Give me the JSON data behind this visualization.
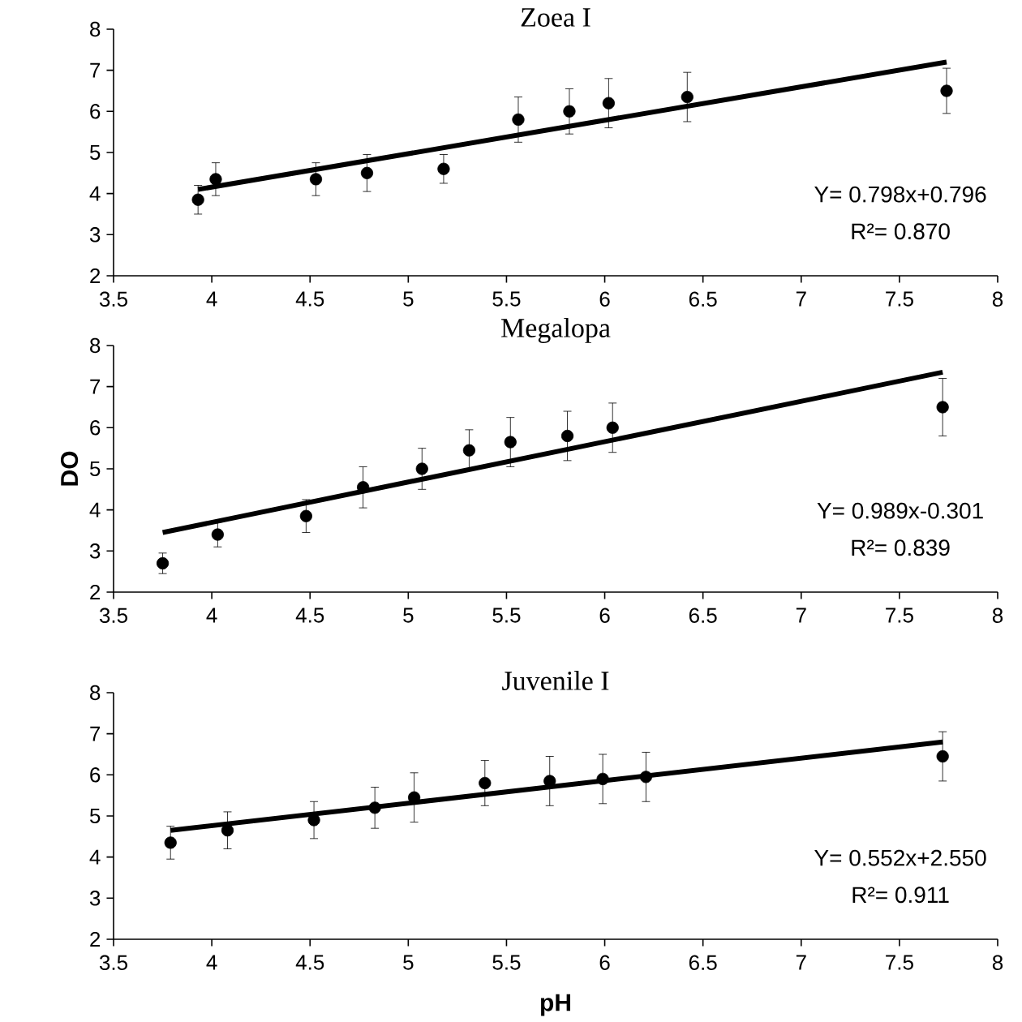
{
  "chart_data": [
    {
      "type": "scatter",
      "title": "Zoea I",
      "xlim": [
        3.5,
        8
      ],
      "ylim": [
        2,
        8
      ],
      "xticks": [
        3.5,
        4,
        4.5,
        5,
        5.5,
        6,
        6.5,
        7,
        7.5,
        8
      ],
      "yticks": [
        2,
        3,
        4,
        5,
        6,
        7,
        8
      ],
      "grid": false,
      "annotations": [
        "Y= 0.798x+0.796",
        "R²= 0.870"
      ],
      "series": [
        {
          "type": "scatter",
          "marker": "circle",
          "color": "#000000",
          "x": [
            3.93,
            4.02,
            4.53,
            4.79,
            5.18,
            5.56,
            5.82,
            6.02,
            6.42,
            7.74
          ],
          "values": [
            3.85,
            4.35,
            4.35,
            4.5,
            4.6,
            5.8,
            6.0,
            6.2,
            6.35,
            6.5
          ],
          "errors": [
            0.35,
            0.4,
            0.4,
            0.45,
            0.35,
            0.55,
            0.55,
            0.6,
            0.6,
            0.55
          ]
        },
        {
          "type": "line",
          "marker": "none",
          "color": "#000000",
          "x": [
            3.93,
            7.74
          ],
          "values": [
            4.1,
            7.2
          ]
        }
      ]
    },
    {
      "type": "scatter",
      "title": "Megalopa",
      "ylabel": "DO",
      "xlim": [
        3.5,
        8
      ],
      "ylim": [
        2,
        8
      ],
      "xticks": [
        3.5,
        4,
        4.5,
        5,
        5.5,
        6,
        6.5,
        7,
        7.5,
        8
      ],
      "yticks": [
        2,
        3,
        4,
        5,
        6,
        7,
        8
      ],
      "grid": false,
      "annotations": [
        "Y= 0.989x-0.301",
        "R²= 0.839"
      ],
      "series": [
        {
          "type": "scatter",
          "marker": "circle",
          "color": "#000000",
          "x": [
            3.75,
            4.03,
            4.48,
            4.77,
            5.07,
            5.31,
            5.52,
            5.81,
            6.04,
            7.72
          ],
          "values": [
            2.7,
            3.4,
            3.85,
            4.55,
            5.0,
            5.45,
            5.65,
            5.8,
            6.0,
            6.5
          ],
          "errors": [
            0.25,
            0.3,
            0.4,
            0.5,
            0.5,
            0.5,
            0.6,
            0.6,
            0.6,
            0.7
          ]
        },
        {
          "type": "line",
          "marker": "none",
          "color": "#000000",
          "x": [
            3.75,
            7.72
          ],
          "values": [
            3.45,
            7.35
          ]
        }
      ]
    },
    {
      "type": "scatter",
      "title": "Juvenile I",
      "xlabel": "pH",
      "xlim": [
        3.5,
        8
      ],
      "ylim": [
        2,
        8
      ],
      "xticks": [
        3.5,
        4,
        4.5,
        5,
        5.5,
        6,
        6.5,
        7,
        7.5,
        8
      ],
      "yticks": [
        2,
        3,
        4,
        5,
        6,
        7,
        8
      ],
      "grid": false,
      "annotations": [
        "Y= 0.552x+2.550",
        "R²= 0.911"
      ],
      "series": [
        {
          "type": "scatter",
          "marker": "circle",
          "color": "#000000",
          "x": [
            3.79,
            4.08,
            4.52,
            4.83,
            5.03,
            5.39,
            5.72,
            5.99,
            6.21,
            7.72
          ],
          "values": [
            4.35,
            4.65,
            4.9,
            5.2,
            5.45,
            5.8,
            5.85,
            5.9,
            5.95,
            6.45
          ],
          "errors": [
            0.4,
            0.45,
            0.45,
            0.5,
            0.6,
            0.55,
            0.6,
            0.6,
            0.6,
            0.6
          ]
        },
        {
          "type": "line",
          "marker": "none",
          "color": "#000000",
          "x": [
            3.79,
            7.72
          ],
          "values": [
            4.65,
            6.8
          ]
        }
      ]
    }
  ]
}
